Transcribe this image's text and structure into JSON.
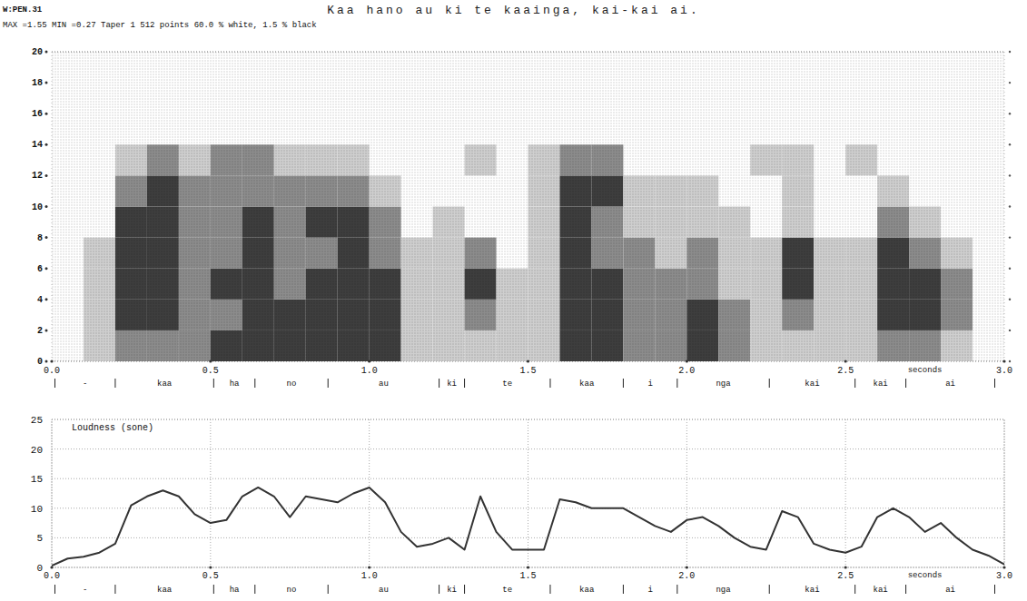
{
  "chart_data": [
    {
      "type": "heatmap",
      "title": "Kaa hano au ki te kaainga, kai-kai ai.",
      "subtitle": "W:PEN.31",
      "annotations": [
        "MAX =1.55  MIN =0.27  Taper 1  512 points  60.0 % white, 1.5 % black"
      ],
      "x_label": "seconds",
      "xlim": [
        0,
        3
      ],
      "xticks": [
        {
          "value": 0,
          "label": "0.0"
        },
        {
          "value": 0.5,
          "label": "0.5"
        },
        {
          "value": 1,
          "label": "1.0"
        },
        {
          "value": 1.5,
          "label": "1.5"
        },
        {
          "value": 2,
          "label": "2.0"
        },
        {
          "value": 2.5,
          "label": "2.5"
        },
        {
          "value": 3,
          "label": "3.0"
        }
      ],
      "ylim": [
        0,
        20
      ],
      "yticks": [
        0,
        2,
        4,
        6,
        8,
        10,
        12,
        14,
        16,
        18,
        20
      ],
      "x_bins": [
        0,
        0.1,
        0.2,
        0.3,
        0.4,
        0.5,
        0.6,
        0.7,
        0.8,
        0.9,
        1,
        1.1,
        1.2,
        1.3,
        1.4,
        1.5,
        1.6,
        1.7,
        1.8,
        1.9,
        2,
        2.1,
        2.2,
        2.3,
        2.4,
        2.5,
        2.6,
        2.7,
        2.8,
        2.9,
        3
      ],
      "y_bins": [
        0,
        2,
        4,
        6,
        8,
        10,
        12,
        14
      ],
      "cells": [
        [
          0,
          1,
          2,
          2,
          2,
          3,
          3,
          3,
          3,
          3,
          3,
          1,
          1,
          1,
          1,
          1,
          3,
          3,
          2,
          2,
          3,
          2,
          1,
          1,
          1,
          1,
          2,
          2,
          1,
          0
        ],
        [
          0,
          1,
          3,
          3,
          2,
          2,
          3,
          3,
          3,
          3,
          3,
          1,
          1,
          2,
          1,
          1,
          3,
          3,
          2,
          2,
          3,
          2,
          1,
          2,
          1,
          1,
          3,
          3,
          2,
          0
        ],
        [
          0,
          1,
          3,
          3,
          2,
          3,
          3,
          2,
          3,
          3,
          3,
          1,
          1,
          3,
          1,
          1,
          3,
          3,
          2,
          2,
          2,
          1,
          1,
          3,
          1,
          1,
          3,
          3,
          2,
          0
        ],
        [
          0,
          1,
          3,
          3,
          2,
          2,
          3,
          2,
          2,
          3,
          2,
          1,
          1,
          2,
          0,
          1,
          3,
          2,
          2,
          1,
          2,
          1,
          1,
          3,
          1,
          1,
          3,
          2,
          1,
          0
        ],
        [
          0,
          0,
          3,
          3,
          2,
          2,
          3,
          2,
          3,
          3,
          2,
          0,
          1,
          0,
          0,
          1,
          3,
          2,
          1,
          1,
          1,
          1,
          0,
          1,
          0,
          0,
          2,
          1,
          0,
          0
        ],
        [
          0,
          0,
          2,
          3,
          2,
          2,
          2,
          2,
          2,
          2,
          1,
          0,
          0,
          0,
          0,
          1,
          3,
          3,
          1,
          1,
          1,
          0,
          0,
          1,
          0,
          0,
          1,
          0,
          0,
          0
        ],
        [
          0,
          0,
          1,
          2,
          1,
          2,
          2,
          1,
          1,
          1,
          0,
          0,
          0,
          1,
          0,
          1,
          2,
          2,
          0,
          0,
          0,
          0,
          1,
          1,
          0,
          1,
          0,
          0,
          0,
          0
        ]
      ],
      "segments": {
        "labels": [
          "-",
          "kaa",
          "ha",
          "no",
          "au",
          "ki",
          "te",
          "kaa",
          "i",
          "nga",
          "kai",
          "kai",
          "ai"
        ],
        "boundaries": [
          0.01,
          0.2,
          0.51,
          0.64,
          0.87,
          1.22,
          1.3,
          1.57,
          1.8,
          1.97,
          2.26,
          2.53,
          2.69,
          2.97
        ]
      }
    },
    {
      "type": "line",
      "title": "Loudness (sone)",
      "x_label": "seconds",
      "x": [
        0,
        0.05,
        0.1,
        0.15,
        0.2,
        0.25,
        0.3,
        0.35,
        0.4,
        0.45,
        0.5,
        0.55,
        0.6,
        0.65,
        0.7,
        0.75,
        0.8,
        0.85,
        0.9,
        0.95,
        1,
        1.05,
        1.1,
        1.15,
        1.2,
        1.25,
        1.3,
        1.35,
        1.4,
        1.45,
        1.5,
        1.55,
        1.6,
        1.65,
        1.7,
        1.75,
        1.8,
        1.85,
        1.9,
        1.95,
        2,
        2.05,
        2.1,
        2.15,
        2.2,
        2.25,
        2.3,
        2.35,
        2.4,
        2.45,
        2.5,
        2.55,
        2.6,
        2.65,
        2.7,
        2.75,
        2.8,
        2.85,
        2.9,
        2.95,
        3
      ],
      "values": [
        0.3,
        1.5,
        1.8,
        2.5,
        4,
        10.5,
        12,
        13,
        12,
        9,
        7.5,
        8,
        12,
        13.5,
        12,
        8.5,
        12,
        11.5,
        11,
        12.5,
        13.5,
        11,
        6,
        3.5,
        4,
        5,
        3,
        12,
        6,
        3,
        3,
        3,
        11.5,
        11,
        10,
        10,
        10,
        8.5,
        7,
        6,
        8,
        8.5,
        7,
        5,
        3.5,
        3,
        9.5,
        8.5,
        4,
        3,
        2.5,
        3.5,
        8.5,
        10,
        8.5,
        6,
        7.5,
        5,
        3,
        2,
        0.5
      ],
      "color": "#333333",
      "xlim": [
        0,
        3
      ],
      "xticks": [
        {
          "value": 0,
          "label": "0.0"
        },
        {
          "value": 0.5,
          "label": "0.5"
        },
        {
          "value": 1,
          "label": "1.0"
        },
        {
          "value": 1.5,
          "label": "1.5"
        },
        {
          "value": 2,
          "label": "2.0"
        },
        {
          "value": 2.5,
          "label": "2.5"
        },
        {
          "value": 3,
          "label": "3.0"
        }
      ],
      "ylim": [
        0,
        25
      ],
      "yticks": [
        0,
        5,
        10,
        15,
        20,
        25
      ],
      "grid": true,
      "segments": {
        "labels": [
          "-",
          "kaa",
          "ha",
          "no",
          "au",
          "ki",
          "te",
          "kaa",
          "i",
          "nga",
          "kai",
          "kai",
          "ai"
        ],
        "boundaries": [
          0.01,
          0.2,
          0.51,
          0.64,
          0.87,
          1.22,
          1.3,
          1.57,
          1.8,
          1.97,
          2.26,
          2.53,
          2.69,
          2.97
        ]
      }
    }
  ]
}
